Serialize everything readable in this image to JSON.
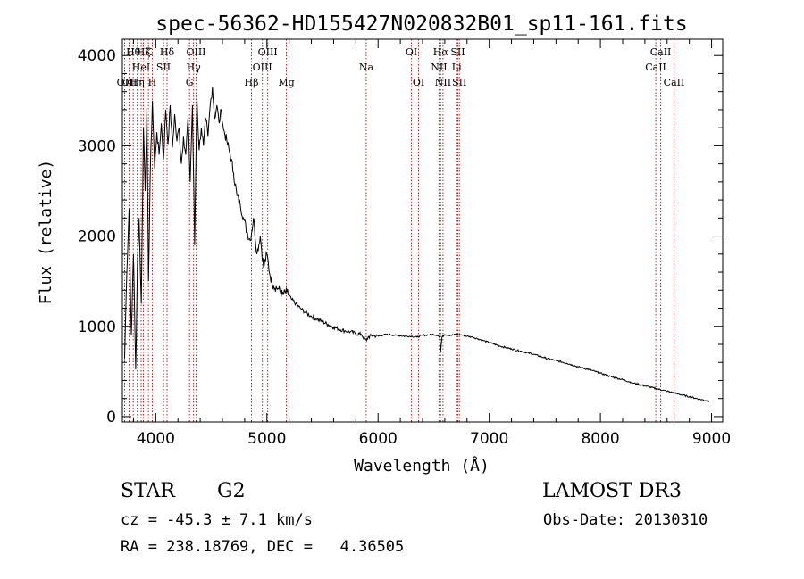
{
  "chart_data": {
    "type": "line",
    "title": "spec-56362-HD155427N020832B01_sp11-161.fits",
    "xlabel": "Wavelength (Å)",
    "ylabel": "Flux (relative)",
    "xlim": [
      3700,
      9100
    ],
    "ylim": [
      -60,
      4180
    ],
    "xticks": [
      4000,
      5000,
      6000,
      7000,
      8000,
      9000
    ],
    "yticks": [
      0,
      1000,
      2000,
      3000,
      4000
    ],
    "series": [
      {
        "name": "flux",
        "x": [
          3720,
          3740,
          3760,
          3780,
          3800,
          3820,
          3835,
          3850,
          3870,
          3890,
          3905,
          3920,
          3935,
          3950,
          3970,
          3990,
          4010,
          4030,
          4050,
          4070,
          4090,
          4110,
          4130,
          4150,
          4170,
          4190,
          4210,
          4230,
          4250,
          4270,
          4290,
          4310,
          4330,
          4350,
          4370,
          4390,
          4410,
          4430,
          4450,
          4470,
          4490,
          4510,
          4530,
          4550,
          4570,
          4590,
          4610,
          4640,
          4670,
          4700,
          4730,
          4760,
          4790,
          4820,
          4850,
          4880,
          4910,
          4940,
          4970,
          5000,
          5030,
          5060,
          5100,
          5140,
          5180,
          5220,
          5260,
          5300,
          5350,
          5400,
          5450,
          5500,
          5550,
          5600,
          5650,
          5700,
          5750,
          5800,
          5850,
          5880,
          5895,
          5910,
          5950,
          6000,
          6050,
          6100,
          6150,
          6200,
          6250,
          6300,
          6350,
          6400,
          6450,
          6500,
          6540,
          6555,
          6563,
          6575,
          6600,
          6650,
          6700,
          6750,
          6800,
          6850,
          6900,
          6950,
          7000,
          7100,
          7200,
          7300,
          7400,
          7500,
          7600,
          7700,
          7800,
          7900,
          8000,
          8100,
          8200,
          8300,
          8400,
          8500,
          8600,
          8700,
          8800,
          8900,
          8980
        ],
        "values": [
          650,
          1600,
          2300,
          900,
          1800,
          520,
          1650,
          2200,
          1250,
          3200,
          2500,
          3420,
          1500,
          2650,
          3500,
          2750,
          3150,
          2900,
          3250,
          2850,
          3400,
          3020,
          3450,
          2980,
          3350,
          3050,
          3200,
          2800,
          3100,
          2900,
          3300,
          2600,
          3450,
          1900,
          3550,
          2950,
          3200,
          3000,
          3300,
          3100,
          3450,
          3650,
          3300,
          3450,
          3250,
          3400,
          3180,
          3050,
          2900,
          2700,
          2450,
          2350,
          2200,
          2050,
          1950,
          2200,
          1800,
          2000,
          1650,
          1800,
          1550,
          1450,
          1420,
          1350,
          1380,
          1300,
          1250,
          1200,
          1150,
          1110,
          1080,
          1050,
          1020,
          990,
          970,
          950,
          940,
          920,
          910,
          860,
          840,
          880,
          900,
          890,
          905,
          910,
          900,
          895,
          890,
          890,
          880,
          900,
          905,
          910,
          900,
          870,
          720,
          880,
          910,
          900,
          910,
          905,
          890,
          880,
          860,
          840,
          820,
          780,
          750,
          720,
          690,
          650,
          620,
          590,
          550,
          520,
          480,
          440,
          410,
          370,
          340,
          310,
          280,
          250,
          220,
          190,
          170
        ]
      }
    ],
    "lines": [
      {
        "x": 3720,
        "label": "OII",
        "row": 2
      },
      {
        "x": 3760,
        "label": "OII",
        "row": 2
      },
      {
        "x": 3798,
        "label": "Hθ",
        "row": 0
      },
      {
        "x": 3834,
        "label": "Hη",
        "row": 2
      },
      {
        "x": 3869,
        "label": "HeI",
        "row": 1
      },
      {
        "x": 3889,
        "label": "Hζ",
        "row": 0
      },
      {
        "x": 3934,
        "label": "K",
        "row": 0
      },
      {
        "x": 3969,
        "label": "H",
        "row": 2
      },
      {
        "x": 4070,
        "label": "SII",
        "row": 1
      },
      {
        "x": 4102,
        "label": "Hδ",
        "row": 0
      },
      {
        "x": 4304,
        "label": "G",
        "row": 2
      },
      {
        "x": 4340,
        "label": "Hγ",
        "row": 1
      },
      {
        "x": 4363,
        "label": "OIII",
        "row": 0
      },
      {
        "x": 4861,
        "label": "Hβ",
        "row": 2
      },
      {
        "x": 4959,
        "label": "OIII",
        "row": 1
      },
      {
        "x": 5007,
        "label": "OIII",
        "row": 0
      },
      {
        "x": 5175,
        "label": "Mg",
        "row": 2
      },
      {
        "x": 5893,
        "label": "Na",
        "row": 1
      },
      {
        "x": 6300,
        "label": "OI",
        "row": 0
      },
      {
        "x": 6364,
        "label": "OI",
        "row": 2
      },
      {
        "x": 6548,
        "label": "NII",
        "row": 1
      },
      {
        "x": 6563,
        "label": "Hα",
        "row": 0
      },
      {
        "x": 6584,
        "label": "NII",
        "row": 2
      },
      {
        "x": 6707,
        "label": "Li",
        "row": 1
      },
      {
        "x": 6717,
        "label": "SII",
        "row": 0
      },
      {
        "x": 6731,
        "label": "SII",
        "row": 2
      },
      {
        "x": 8498,
        "label": "CaII",
        "row": 1
      },
      {
        "x": 8542,
        "label": "CaII",
        "row": 0
      },
      {
        "x": 8662,
        "label": "CaII",
        "row": 2
      }
    ]
  },
  "info": {
    "class": "STAR",
    "subclass": "G2",
    "survey": "LAMOST DR3",
    "cz": "cz = -45.3 ± 7.1 km/s",
    "obs_date": "Obs-Date: 20130310",
    "coords": "RA = 238.18769, DEC =   4.36505"
  }
}
